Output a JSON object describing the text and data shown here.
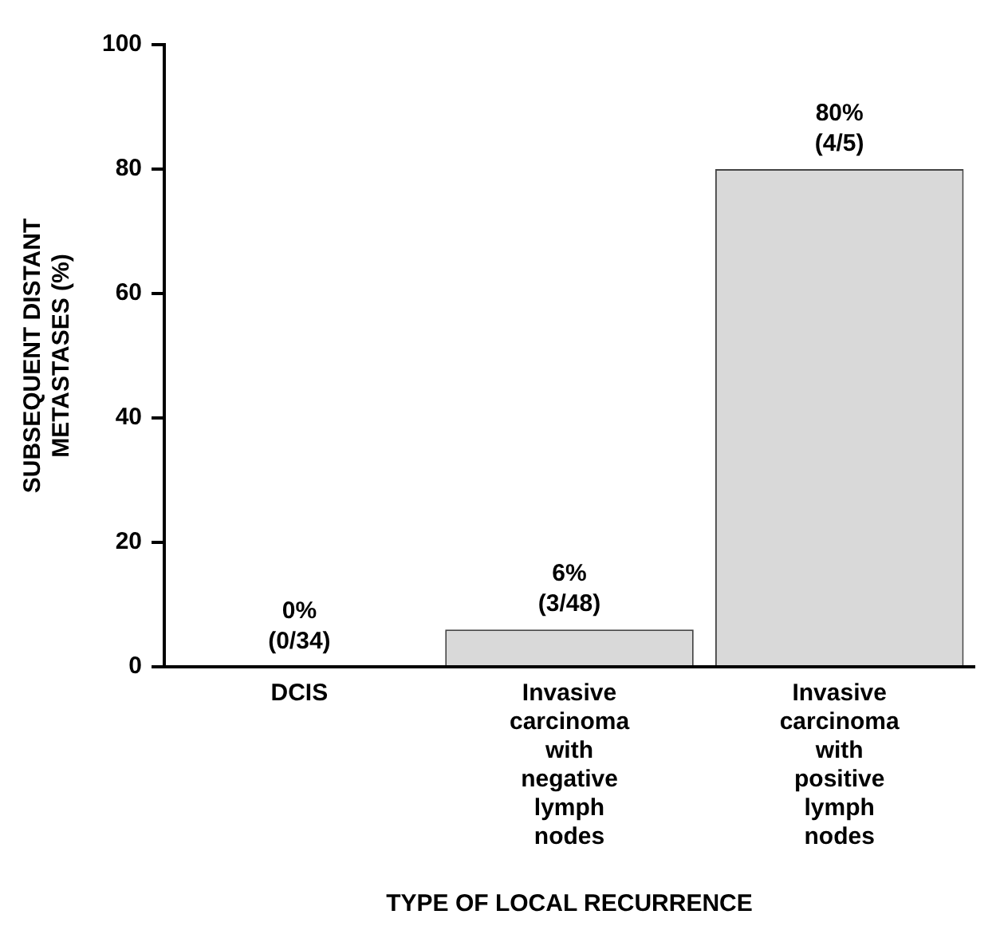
{
  "chart_data": {
    "type": "bar",
    "categories": [
      "DCIS",
      "Invasive carcinoma with negative lymph nodes",
      "Invasive carcinoma with positive lymph nodes"
    ],
    "values": [
      0,
      6,
      80
    ],
    "value_labels": [
      "0%\n(0/34)",
      "6%\n(3/48)",
      "80%\n(4/5)"
    ],
    "color": "#d9d9d9",
    "xlabel": "TYPE OF LOCAL RECURRENCE",
    "ylabel": "SUBSEQUENT DISTANT METASTASES (%)",
    "ylim": [
      0,
      100
    ],
    "yticks": [
      0,
      20,
      40,
      60,
      80,
      100
    ],
    "grid": false,
    "legend": false
  }
}
